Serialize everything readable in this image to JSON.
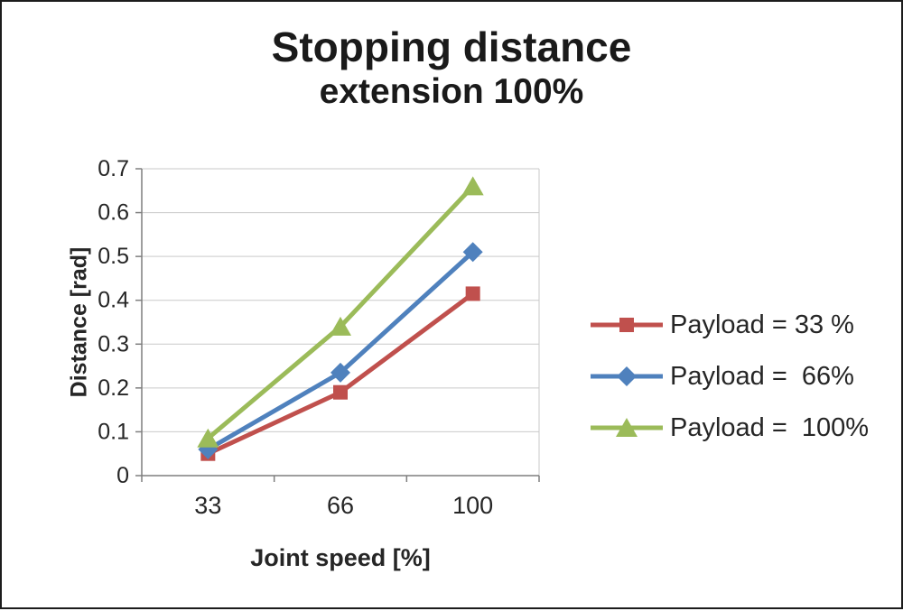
{
  "chart_data": {
    "type": "line",
    "title": "Stopping distance",
    "subtitle": "extension 100%",
    "xlabel": "Joint speed [%]",
    "ylabel": "Distance [rad]",
    "categories": [
      "33",
      "66",
      "100"
    ],
    "ylim": [
      0,
      0.7
    ],
    "ytick_step": 0.1,
    "grid": true,
    "legend_position": "right",
    "axis_color": "#7f7f7f",
    "gridline_color": "#c9c9c9",
    "text_color": "#262626",
    "series": [
      {
        "name": "Payload = 33 %",
        "marker": "square",
        "color": "#c0504d",
        "values": [
          0.05,
          0.19,
          0.415
        ]
      },
      {
        "name": "Payload =  66%",
        "marker": "diamond",
        "color": "#4f81bd",
        "values": [
          0.06,
          0.235,
          0.51
        ]
      },
      {
        "name": "Payload =  100%",
        "marker": "triangle",
        "color": "#9bbb59",
        "values": [
          0.085,
          0.34,
          0.66
        ]
      }
    ]
  }
}
